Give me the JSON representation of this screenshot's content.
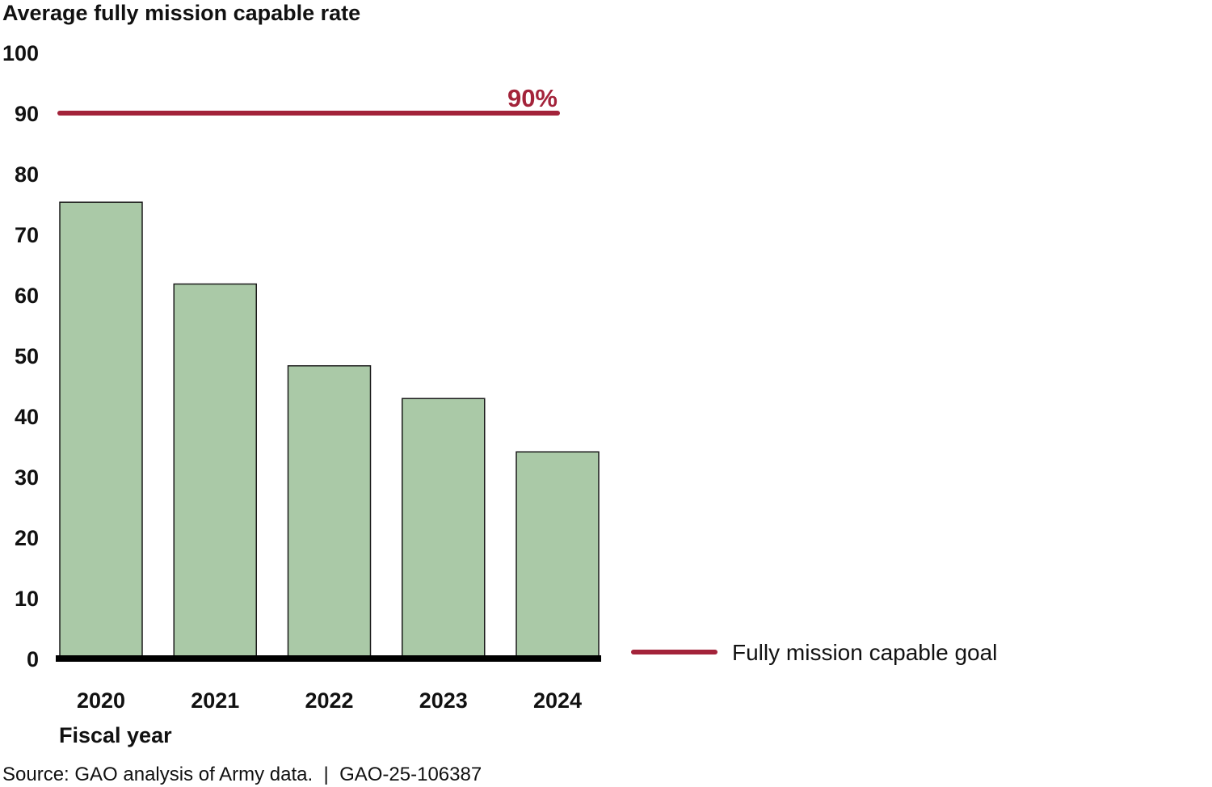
{
  "chart_data": {
    "type": "bar",
    "ylabel": "Average fully mission capable rate",
    "xlabel": "Fiscal year",
    "categories": [
      "2020",
      "2021",
      "2022",
      "2023",
      "2024"
    ],
    "values": [
      75.3,
      61.8,
      48.3,
      42.9,
      34.1
    ],
    "ylim": [
      0,
      100
    ],
    "yticks": [
      "0",
      "10",
      "20",
      "30",
      "40",
      "50",
      "60",
      "70",
      "80",
      "90",
      "100"
    ],
    "grid": false,
    "goal": {
      "value": 90,
      "label": "90%",
      "legend": "Fully mission capable goal"
    },
    "legend_position": "bottom-right",
    "colors": {
      "bar": "#aac9a7",
      "bar_border": "#1a1a1a",
      "goal": "#a3233a",
      "axis": "#000000"
    }
  },
  "source": "Source: GAO analysis of Army data.  |  GAO-25-106387"
}
